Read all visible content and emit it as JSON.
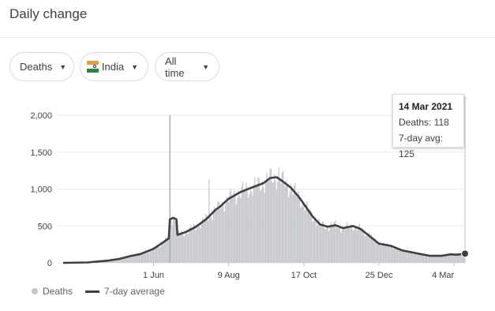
{
  "header": {
    "title": "Daily change"
  },
  "filters": {
    "metric": {
      "label": "Deaths"
    },
    "country": {
      "label": "India",
      "flag": "india-flag-icon"
    },
    "range": {
      "label": "All time"
    }
  },
  "tooltip": {
    "date": "14 Mar 2021",
    "deaths_label": "Deaths: 118",
    "avg_label": "7-day avg: 125"
  },
  "legend": {
    "deaths": "Deaths",
    "avg": "7-day average"
  },
  "colors": {
    "bars": "#c5c7cb",
    "line": "#3c4043",
    "grid": "#e8eaed",
    "spike": "#9aa0a6"
  },
  "chart_data": {
    "type": "bar",
    "x_ticks": [
      "1 Jun",
      "9 Aug",
      "17 Oct",
      "25 Dec",
      "4 Mar"
    ],
    "y_ticks": [
      "0",
      "500",
      "1,000",
      "1,500",
      "2,000"
    ],
    "ylim": [
      0,
      2000
    ],
    "xlim": [
      "2020-03-10",
      "2021-03-14"
    ],
    "grid": true,
    "legend_position": "bottom-left",
    "series": [
      {
        "name": "Deaths",
        "type": "bar",
        "spikes": [
          {
            "date": "2020-06-16",
            "value": 2003
          },
          {
            "date": "2020-07-22",
            "value": 1130
          },
          {
            "date": "2020-09-24",
            "value": 1300
          },
          {
            "date": "2020-12-01",
            "value": 440
          },
          {
            "date": "2020-12-16",
            "value": 420
          }
        ]
      },
      {
        "name": "7-day average",
        "type": "line",
        "points": [
          [
            "2020-03-10",
            0
          ],
          [
            "2020-04-01",
            5
          ],
          [
            "2020-04-20",
            30
          ],
          [
            "2020-05-01",
            55
          ],
          [
            "2020-05-10",
            90
          ],
          [
            "2020-05-20",
            120
          ],
          [
            "2020-06-01",
            190
          ],
          [
            "2020-06-10",
            280
          ],
          [
            "2020-06-13",
            310
          ],
          [
            "2020-06-15",
            330
          ],
          [
            "2020-06-16",
            590
          ],
          [
            "2020-06-19",
            610
          ],
          [
            "2020-06-22",
            590
          ],
          [
            "2020-06-23",
            380
          ],
          [
            "2020-07-01",
            420
          ],
          [
            "2020-07-10",
            490
          ],
          [
            "2020-07-20",
            600
          ],
          [
            "2020-07-28",
            720
          ],
          [
            "2020-08-01",
            760
          ],
          [
            "2020-08-09",
            870
          ],
          [
            "2020-08-20",
            960
          ],
          [
            "2020-09-01",
            1030
          ],
          [
            "2020-09-10",
            1080
          ],
          [
            "2020-09-16",
            1150
          ],
          [
            "2020-09-22",
            1160
          ],
          [
            "2020-09-28",
            1100
          ],
          [
            "2020-10-05",
            1020
          ],
          [
            "2020-10-12",
            900
          ],
          [
            "2020-10-17",
            800
          ],
          [
            "2020-10-25",
            630
          ],
          [
            "2020-11-01",
            520
          ],
          [
            "2020-11-08",
            490
          ],
          [
            "2020-11-15",
            510
          ],
          [
            "2020-11-22",
            470
          ],
          [
            "2020-12-01",
            500
          ],
          [
            "2020-12-08",
            460
          ],
          [
            "2020-12-15",
            380
          ],
          [
            "2020-12-25",
            260
          ],
          [
            "2021-01-05",
            230
          ],
          [
            "2021-01-15",
            170
          ],
          [
            "2021-01-25",
            140
          ],
          [
            "2021-02-01",
            120
          ],
          [
            "2021-02-10",
            95
          ],
          [
            "2021-02-20",
            95
          ],
          [
            "2021-03-01",
            115
          ],
          [
            "2021-03-07",
            110
          ],
          [
            "2021-03-14",
            125
          ]
        ]
      }
    ],
    "highlight": {
      "date": "2021-03-14",
      "value": 125
    }
  }
}
